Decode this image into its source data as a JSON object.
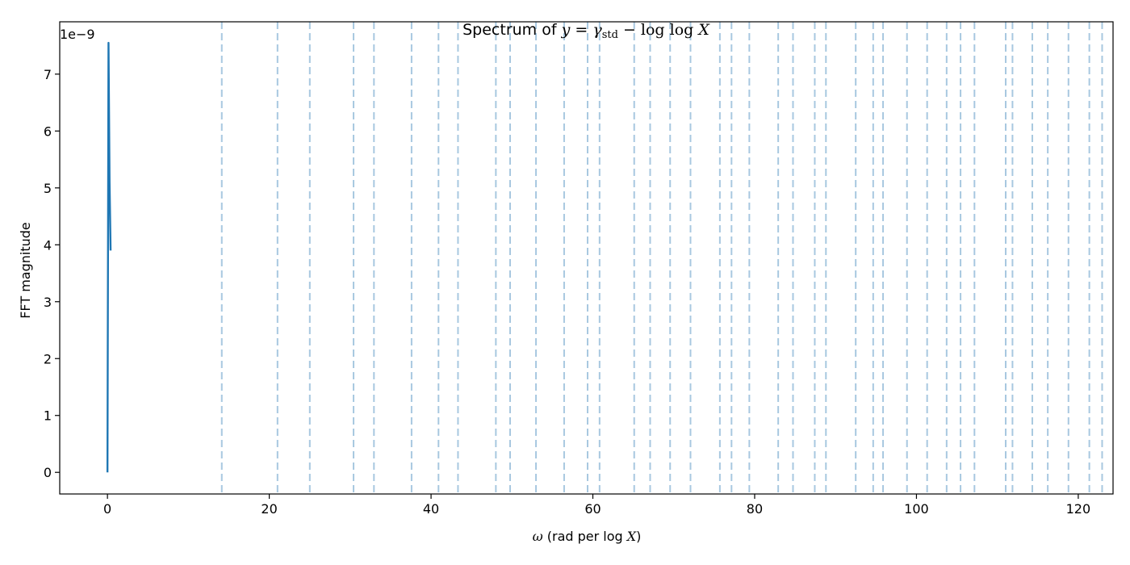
{
  "chart_data": {
    "type": "line",
    "title": {
      "prefix": "Spectrum of ",
      "y_var": "y",
      "equals": " = ",
      "gamma": "γ",
      "gamma_sub": "std",
      "minus_loglog": " − log log ",
      "X_var": "X"
    },
    "xlabel": {
      "omega": "ω",
      "text": " (rad per log ",
      "X_var": "X",
      "close": ")"
    },
    "ylabel": "FFT magnitude",
    "y_offset_label": "1e−9",
    "xlim": [
      -5.9,
      124.3
    ],
    "ylim": [
      -0.38,
      7.92
    ],
    "xticks": [
      0,
      20,
      40,
      60,
      80,
      100,
      120
    ],
    "yticks": [
      0,
      1,
      2,
      3,
      4,
      5,
      6,
      7
    ],
    "grid": false,
    "series": [
      {
        "color": "#1f77b4",
        "x": [
          0.0,
          0.13,
          0.26,
          0.39
        ],
        "y": [
          0.0,
          7.55,
          5.1,
          3.9
        ]
      }
    ],
    "vlines": {
      "style": "dashed",
      "color": "#a8c8e0",
      "x": [
        14.13,
        21.02,
        25.01,
        30.42,
        32.94,
        37.59,
        40.92,
        43.33,
        48.01,
        49.77,
        52.97,
        56.45,
        59.35,
        60.83,
        65.11,
        67.08,
        69.55,
        72.07,
        75.7,
        77.14,
        79.34,
        82.91,
        84.74,
        87.43,
        88.81,
        92.49,
        94.65,
        95.87,
        98.83,
        101.32,
        103.73,
        105.45,
        107.17,
        111.03,
        111.87,
        114.32,
        116.23,
        118.79,
        121.37,
        122.95
      ]
    }
  }
}
